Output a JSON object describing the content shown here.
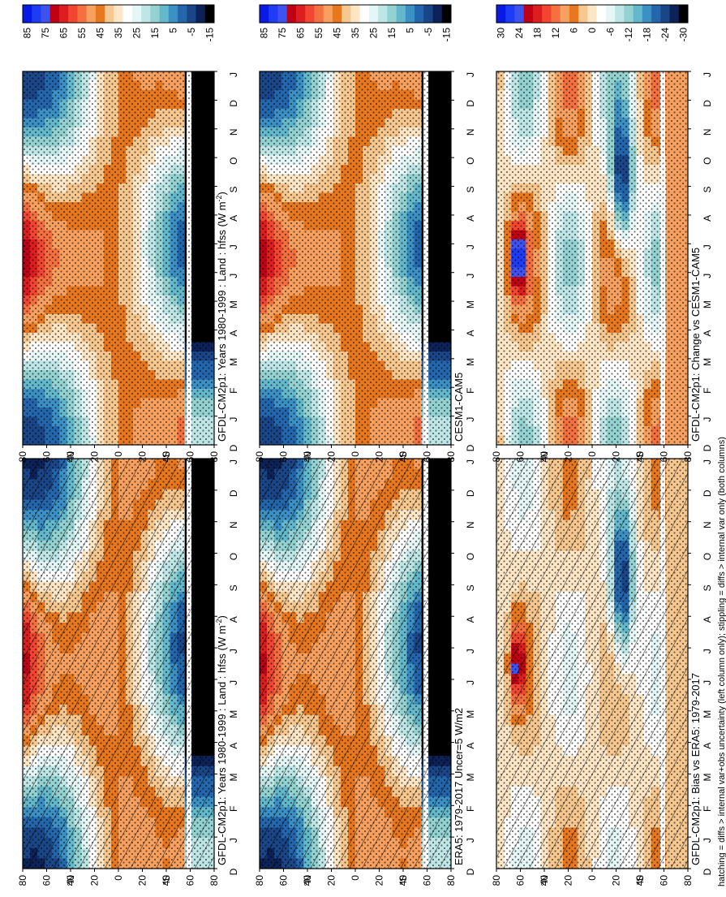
{
  "footnote": "hatching = diffs > internal var+obs uncertainty (left column only); stippling = diffs > internal var only (both columns)",
  "chart_data": [
    {
      "type": "heatmap",
      "id": "model-left",
      "title": "GFDL-CM2p1: Years 1980-1999 : Land : hfss (W m",
      "title_sup": "-2",
      "title_tail": ")",
      "xlabel": "",
      "ylabel": "",
      "x_tick_labels": [
        "D",
        "J",
        "F",
        "M",
        "A",
        "M",
        "J",
        "J",
        "A",
        "S",
        "O",
        "N",
        "D",
        "J"
      ],
      "y_tick_labels": [
        "80",
        "60",
        "40",
        "20",
        "0",
        "20",
        "40",
        "60",
        "80"
      ],
      "y_extra_labels": [
        "°N",
        "°S"
      ],
      "colorbar_labels": [
        "85",
        "75",
        "65",
        "55",
        "45",
        "35",
        "25",
        "15",
        "5",
        "-5",
        "-15"
      ],
      "colorbar_colors": [
        "#1a1acc",
        "#1f3cf0",
        "#6a5acd",
        "#b00010",
        "#d21418",
        "#f03c2c",
        "#f06a3c",
        "#f89650",
        "#e06a14",
        "#f5c98a",
        "#fce8c8",
        "#ffffff",
        "#ddf4f4",
        "#b8e6e6",
        "#8ccece",
        "#60b4c8",
        "#3c8cc0",
        "#2060a8",
        "#184080",
        "#0c1c50",
        "#000000"
      ],
      "hatching": true
    },
    {
      "type": "heatmap",
      "id": "model-right",
      "title": "GFDL-CM2p1: Years 1980-1999 : Land : hfss (W m",
      "title_sup": "-2",
      "title_tail": ")",
      "x_tick_labels": [
        "D",
        "J",
        "F",
        "M",
        "A",
        "M",
        "J",
        "J",
        "A",
        "S",
        "O",
        "N",
        "D",
        "J"
      ],
      "y_tick_labels": [
        "80",
        "60",
        "40",
        "20",
        "0",
        "20",
        "40",
        "60",
        "80"
      ],
      "y_extra_labels": [
        "°N",
        "°S"
      ],
      "colorbar_labels": [
        "85",
        "75",
        "65",
        "55",
        "45",
        "35",
        "25",
        "15",
        "5",
        "-5",
        "-15"
      ],
      "hatching": false
    },
    {
      "type": "heatmap",
      "id": "obs-left",
      "title": "ERA5: 1979-2017 Uncer=5 W/m2",
      "x_tick_labels": [
        "D",
        "J",
        "F",
        "M",
        "A",
        "M",
        "J",
        "J",
        "A",
        "S",
        "O",
        "N",
        "D",
        "J"
      ],
      "y_tick_labels": [
        "80",
        "60",
        "40",
        "20",
        "0",
        "20",
        "40",
        "60",
        "80"
      ],
      "y_extra_labels": [
        "°N",
        "°S"
      ],
      "colorbar_labels": [
        "85",
        "75",
        "65",
        "55",
        "45",
        "35",
        "25",
        "15",
        "5",
        "-5",
        "-15"
      ],
      "hatching": true
    },
    {
      "type": "heatmap",
      "id": "ref-right",
      "title": "CESM1-CAM5",
      "x_tick_labels": [
        "D",
        "J",
        "F",
        "M",
        "A",
        "M",
        "J",
        "J",
        "A",
        "S",
        "O",
        "N",
        "D",
        "J"
      ],
      "y_tick_labels": [
        "80",
        "60",
        "40",
        "20",
        "0",
        "20",
        "40",
        "60",
        "80"
      ],
      "y_extra_labels": [
        "°N",
        "°S"
      ],
      "colorbar_labels": [
        "85",
        "75",
        "65",
        "55",
        "45",
        "35",
        "25",
        "15",
        "5",
        "-5",
        "-15"
      ],
      "hatching": false
    },
    {
      "type": "heatmap",
      "id": "bias-left",
      "title": "GFDL-CM2p1: Bias vs ERA5: 1979-2017",
      "x_tick_labels": [
        "D",
        "J",
        "F",
        "M",
        "A",
        "M",
        "J",
        "J",
        "A",
        "S",
        "O",
        "N",
        "D",
        "J"
      ],
      "y_tick_labels": [
        "80",
        "60",
        "40",
        "20",
        "0",
        "20",
        "40",
        "60",
        "80"
      ],
      "y_extra_labels": [
        "°N",
        "°S"
      ],
      "colorbar_labels": [
        "30",
        "24",
        "18",
        "12",
        "6",
        "0",
        "-6",
        "-12",
        "-18",
        "-24",
        "-30"
      ],
      "hatching": true
    },
    {
      "type": "heatmap",
      "id": "change-right",
      "title": "GFDL-CM2p1: Change vs CESM1-CAM5",
      "x_tick_labels": [
        "D",
        "J",
        "F",
        "M",
        "A",
        "M",
        "J",
        "J",
        "A",
        "S",
        "O",
        "N",
        "D",
        "J"
      ],
      "y_tick_labels": [
        "80",
        "60",
        "40",
        "20",
        "0",
        "20",
        "40",
        "60",
        "80"
      ],
      "y_extra_labels": [
        "°N",
        "°S"
      ],
      "colorbar_labels": [
        "30",
        "24",
        "18",
        "12",
        "6",
        "0",
        "-6",
        "-12",
        "-18",
        "-24",
        "-30"
      ],
      "hatching": false
    }
  ]
}
